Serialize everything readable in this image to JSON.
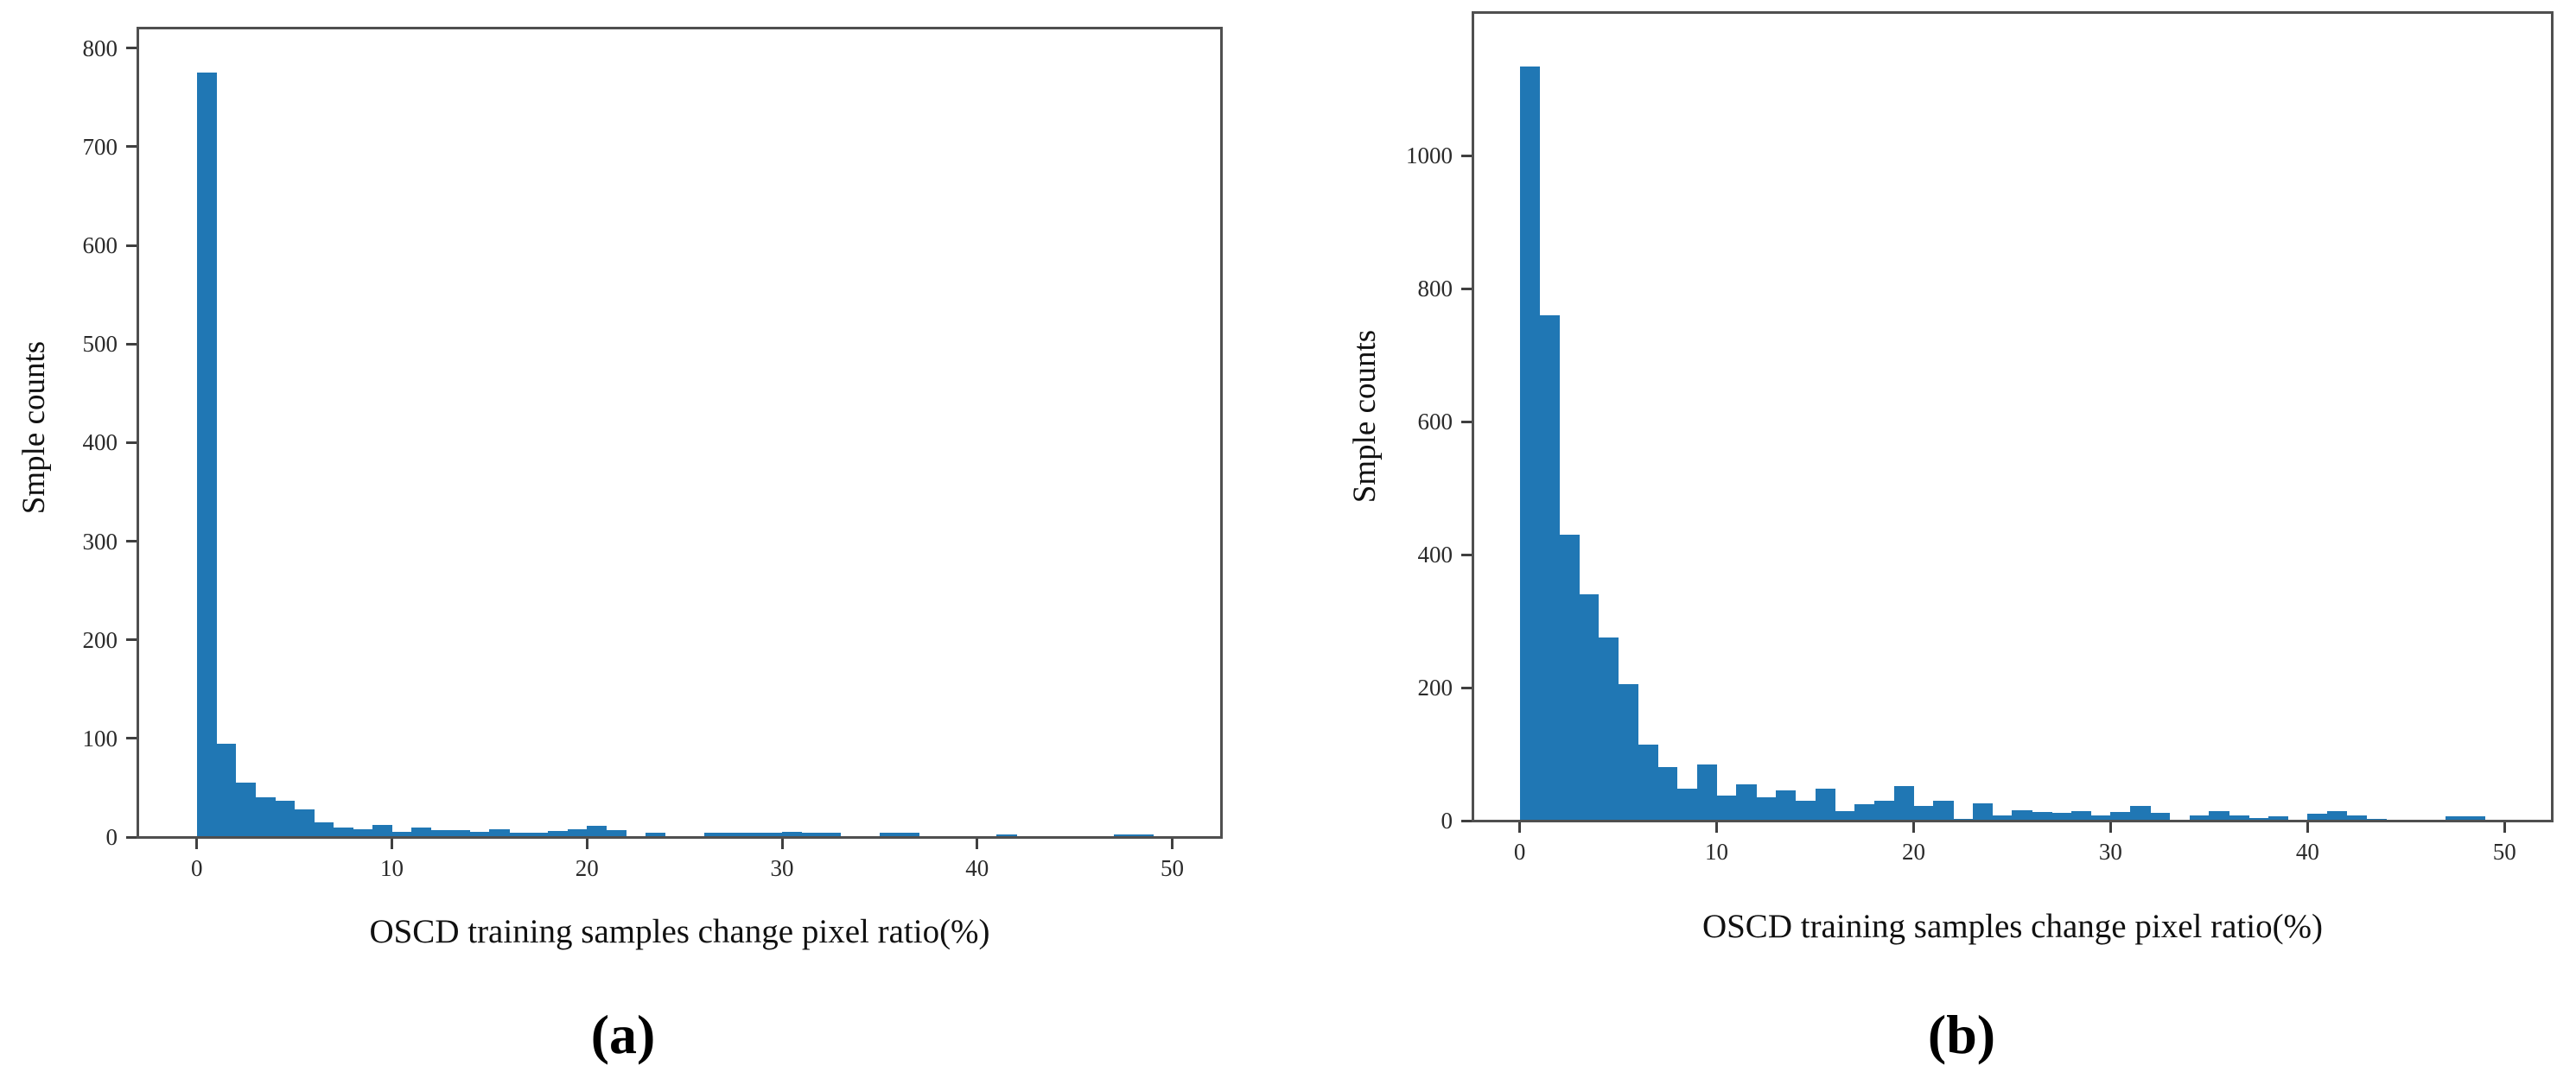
{
  "figure": {
    "background_color": "#ffffff",
    "bar_color": "#2077b4",
    "axis_color": "#4f4f4f",
    "text_color": "#1c1c1c"
  },
  "chart_data": [
    {
      "id": "a",
      "type": "bar",
      "subtype": "histogram",
      "title": "",
      "caption": "(a)",
      "xlabel": "OSCD training samples change pixel ratio(%)",
      "ylabel": "Smple counts",
      "bin_start": 0,
      "bin_width": 1,
      "values": [
        775,
        95,
        55,
        40,
        37,
        28,
        15,
        10,
        8,
        12,
        5,
        10,
        7,
        7,
        5,
        8,
        4,
        4,
        6,
        8,
        11,
        7,
        0,
        4,
        0,
        0,
        4,
        4,
        4,
        4,
        5,
        4,
        4,
        0,
        0,
        4,
        4,
        0,
        0,
        0,
        0,
        3,
        0,
        0,
        0,
        0,
        0,
        3,
        3,
        0
      ],
      "xlim": [
        -3,
        52.5
      ],
      "ylim": [
        0,
        820
      ],
      "xticks": [
        0,
        10,
        20,
        30,
        40,
        50
      ],
      "yticks": [
        0,
        100,
        200,
        300,
        400,
        500,
        600,
        700,
        800
      ],
      "grid": false,
      "legend": null
    },
    {
      "id": "b",
      "type": "bar",
      "subtype": "histogram",
      "title": "",
      "caption": "(b)",
      "xlabel": "OSCD training samples change pixel ratio(%)",
      "ylabel": "Smple counts",
      "bin_start": 0,
      "bin_width": 1,
      "values": [
        1135,
        760,
        430,
        340,
        275,
        205,
        115,
        80,
        48,
        85,
        38,
        55,
        35,
        45,
        30,
        48,
        14,
        25,
        30,
        52,
        22,
        30,
        3,
        26,
        8,
        16,
        13,
        12,
        15,
        8,
        13,
        22,
        12,
        2,
        8,
        14,
        8,
        4,
        7,
        2,
        10,
        15,
        8,
        3,
        2,
        0,
        0,
        6,
        6,
        0
      ],
      "xlim": [
        -2.35,
        52.4
      ],
      "ylim": [
        0,
        1215
      ],
      "xticks": [
        0,
        10,
        20,
        30,
        40,
        50
      ],
      "yticks": [
        0,
        200,
        400,
        600,
        800,
        1000
      ],
      "grid": false,
      "legend": null
    }
  ]
}
